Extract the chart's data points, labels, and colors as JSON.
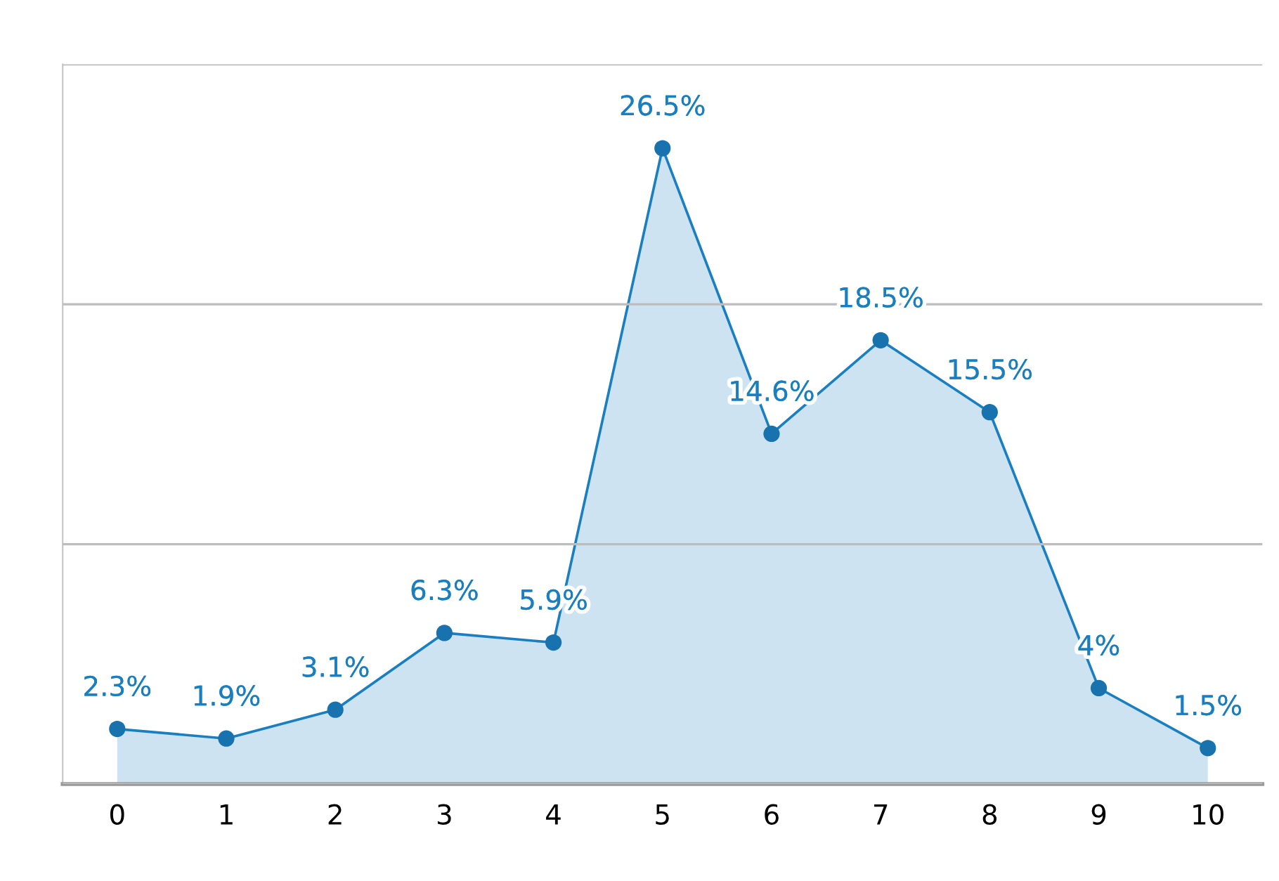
{
  "chart_data": {
    "type": "area",
    "categories": [
      "0",
      "1",
      "2",
      "3",
      "4",
      "5",
      "6",
      "7",
      "8",
      "9",
      "10"
    ],
    "series": [
      {
        "color": "#1a7fc1",
        "values": [
          2.3,
          1.9,
          3.1,
          6.3,
          5.9,
          26.5,
          14.6,
          18.5,
          15.5,
          4,
          1.5
        ],
        "value_labels": [
          "2.3%",
          "1.9%",
          "3.1%",
          "6.3%",
          "5.9%",
          "26.5%",
          "14.6%",
          "18.5%",
          "15.5%",
          "4%",
          "1.5%"
        ]
      }
    ],
    "ylim": [
      0,
      30
    ],
    "yticks": [
      {
        "value": 0,
        "label": null
      },
      {
        "value": 10,
        "label": null
      },
      {
        "value": 20,
        "label": null
      },
      {
        "value": 30,
        "label": null
      }
    ],
    "grid": "y",
    "marker": "circle",
    "line_style": "solid",
    "legend": false,
    "tick_labels": "x"
  }
}
